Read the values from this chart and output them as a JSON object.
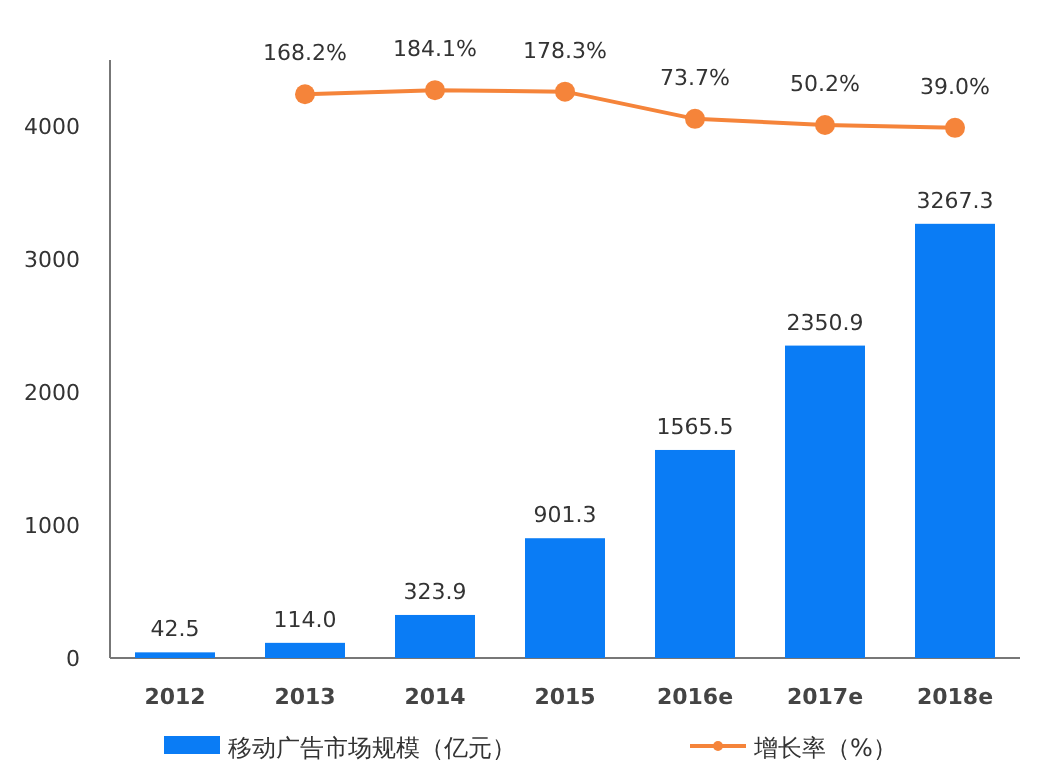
{
  "chart_data": {
    "type": "bar",
    "categories": [
      "2012",
      "2013",
      "2014",
      "2015",
      "2016e",
      "2017e",
      "2018e"
    ],
    "series": [
      {
        "name": "移动广告市场规模（亿元）",
        "color": "#0a7cf5",
        "values": [
          42.5,
          114.0,
          323.9,
          901.3,
          1565.5,
          2350.9,
          3267.3
        ],
        "value_labels": [
          "42.5",
          "114.0",
          "323.9",
          "901.3",
          "1565.5",
          "2350.9",
          "3267.3"
        ]
      },
      {
        "name": "增长率（%）",
        "type": "line",
        "axis": "y2",
        "color": "#f5843a",
        "marker": "circle",
        "values": [
          null,
          168.2,
          184.1,
          178.3,
          73.7,
          50.2,
          39.0
        ],
        "value_labels": [
          null,
          "168.2%",
          "184.1%",
          "178.3%",
          "73.7%",
          "50.2%",
          "39.0%"
        ]
      }
    ],
    "ylim": [
      0,
      4500
    ],
    "yticks": [
      0,
      1000,
      2000,
      3000,
      4000
    ],
    "y2lim": [
      -2000,
      300
    ],
    "data_labels": true,
    "legend": "bottom",
    "grid": false,
    "tick_labels": "xy"
  }
}
